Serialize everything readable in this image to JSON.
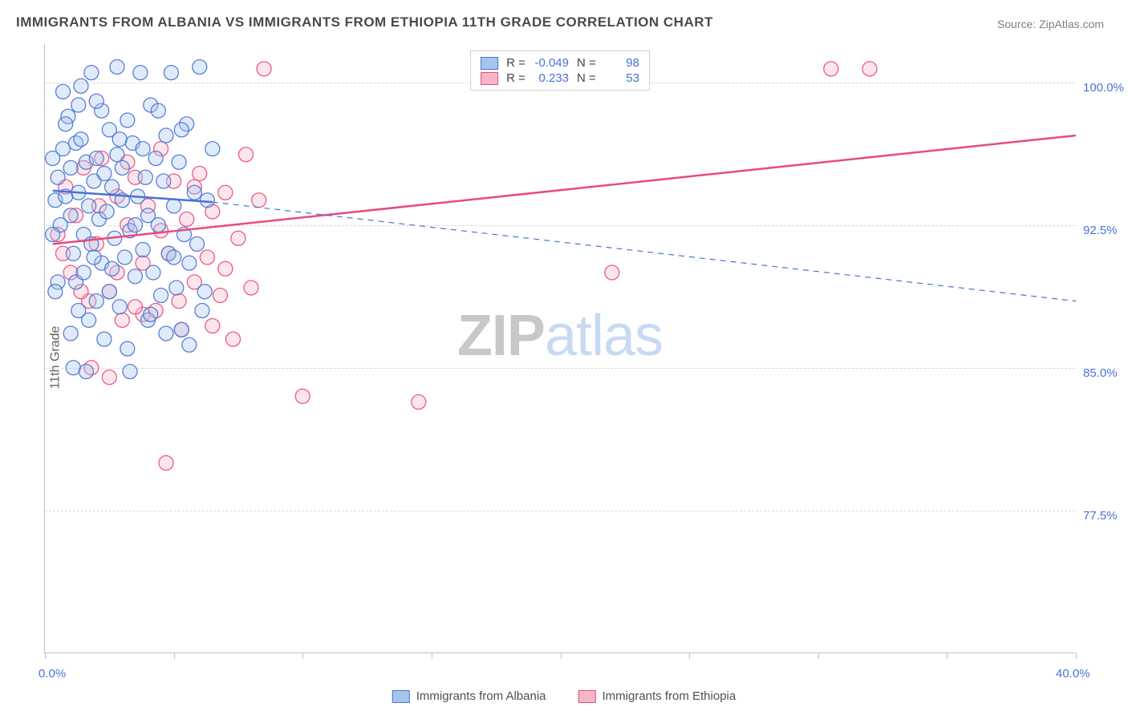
{
  "title": "IMMIGRANTS FROM ALBANIA VS IMMIGRANTS FROM ETHIOPIA 11TH GRADE CORRELATION CHART",
  "source": "Source: ZipAtlas.com",
  "ylabel": "11th Grade",
  "watermark": {
    "part1": "ZIP",
    "part2": "atlas"
  },
  "chart": {
    "type": "scatter",
    "xlim": [
      0,
      40
    ],
    "ylim": [
      70,
      102
    ],
    "xticks": [
      0,
      5,
      10,
      15,
      20,
      25,
      30,
      35,
      40
    ],
    "xticklabels": {
      "0": "0.0%",
      "40": "40.0%"
    },
    "yticks": [
      77.5,
      85.0,
      92.5,
      100.0
    ],
    "yticklabels": [
      "77.5%",
      "85.0%",
      "92.5%",
      "100.0%"
    ],
    "grid_color": "#d8d8d8",
    "axis_color": "#c0c0c0",
    "tick_label_color": "#4a72d4",
    "background_color": "#ffffff",
    "marker_radius": 9,
    "marker_fill_opacity": 0.35,
    "marker_stroke_width": 1.3,
    "line_width_solid": 2.5,
    "line_width_dashed": 1.2
  },
  "series": {
    "albania": {
      "label": "Immigrants from Albania",
      "fill": "#a5c5ed",
      "stroke": "#4a72d4",
      "R": "-0.049",
      "N": "98",
      "trend_solid": {
        "x1": 0.3,
        "y1": 94.3,
        "x2": 6.5,
        "y2": 93.7
      },
      "trend_dashed": {
        "x1": 6.5,
        "y1": 93.7,
        "x2": 40,
        "y2": 88.5
      },
      "points": [
        [
          0.4,
          93.8
        ],
        [
          0.5,
          95.0
        ],
        [
          0.6,
          92.5
        ],
        [
          0.7,
          96.5
        ],
        [
          0.8,
          94.0
        ],
        [
          0.9,
          98.2
        ],
        [
          1.0,
          93.0
        ],
        [
          1.0,
          95.5
        ],
        [
          1.1,
          91.0
        ],
        [
          1.2,
          96.8
        ],
        [
          1.2,
          89.5
        ],
        [
          1.3,
          94.2
        ],
        [
          1.3,
          88.0
        ],
        [
          1.4,
          97.0
        ],
        [
          1.5,
          92.0
        ],
        [
          1.5,
          90.0
        ],
        [
          1.6,
          95.8
        ],
        [
          1.7,
          93.5
        ],
        [
          1.8,
          100.5
        ],
        [
          1.8,
          91.5
        ],
        [
          1.9,
          94.8
        ],
        [
          2.0,
          96.0
        ],
        [
          2.0,
          88.5
        ],
        [
          2.1,
          92.8
        ],
        [
          2.2,
          98.5
        ],
        [
          2.2,
          90.5
        ],
        [
          2.3,
          95.2
        ],
        [
          2.4,
          93.2
        ],
        [
          2.5,
          97.5
        ],
        [
          2.5,
          89.0
        ],
        [
          2.6,
          94.5
        ],
        [
          2.7,
          91.8
        ],
        [
          2.8,
          100.8
        ],
        [
          2.8,
          96.2
        ],
        [
          2.9,
          88.2
        ],
        [
          3.0,
          93.8
        ],
        [
          3.0,
          95.5
        ],
        [
          3.1,
          90.8
        ],
        [
          3.2,
          98.0
        ],
        [
          3.3,
          84.8
        ],
        [
          3.3,
          92.2
        ],
        [
          3.4,
          96.8
        ],
        [
          3.5,
          89.8
        ],
        [
          3.6,
          94.0
        ],
        [
          3.7,
          100.5
        ],
        [
          3.8,
          91.2
        ],
        [
          3.9,
          95.0
        ],
        [
          4.0,
          87.5
        ],
        [
          4.0,
          93.0
        ],
        [
          4.1,
          98.8
        ],
        [
          4.2,
          90.0
        ],
        [
          4.3,
          96.0
        ],
        [
          4.4,
          92.5
        ],
        [
          4.5,
          88.8
        ],
        [
          4.6,
          94.8
        ],
        [
          4.7,
          97.2
        ],
        [
          4.8,
          91.0
        ],
        [
          4.9,
          100.5
        ],
        [
          5.0,
          93.5
        ],
        [
          5.1,
          89.2
        ],
        [
          5.2,
          95.8
        ],
        [
          5.3,
          87.0
        ],
        [
          5.4,
          92.0
        ],
        [
          5.5,
          97.8
        ],
        [
          5.6,
          90.5
        ],
        [
          5.8,
          94.2
        ],
        [
          6.0,
          100.8
        ],
        [
          6.1,
          88.0
        ],
        [
          6.3,
          93.8
        ],
        [
          6.5,
          96.5
        ],
        [
          0.5,
          89.5
        ],
        [
          0.8,
          97.8
        ],
        [
          1.1,
          85.0
        ],
        [
          1.4,
          99.8
        ],
        [
          1.7,
          87.5
        ],
        [
          2.0,
          99.0
        ],
        [
          2.3,
          86.5
        ],
        [
          2.6,
          90.2
        ],
        [
          2.9,
          97.0
        ],
        [
          3.2,
          86.0
        ],
        [
          3.5,
          92.5
        ],
        [
          3.8,
          96.5
        ],
        [
          4.1,
          87.8
        ],
        [
          4.4,
          98.5
        ],
        [
          4.7,
          86.8
        ],
        [
          5.0,
          90.8
        ],
        [
          5.3,
          97.5
        ],
        [
          5.6,
          86.2
        ],
        [
          5.9,
          91.5
        ],
        [
          6.2,
          89.0
        ],
        [
          0.7,
          99.5
        ],
        [
          1.0,
          86.8
        ],
        [
          1.3,
          98.8
        ],
        [
          1.6,
          84.8
        ],
        [
          1.9,
          90.8
        ],
        [
          0.3,
          92.0
        ],
        [
          0.3,
          96.0
        ],
        [
          0.4,
          89.0
        ]
      ]
    },
    "ethiopia": {
      "label": "Immigrants from Ethiopia",
      "fill": "#f5b7c8",
      "stroke": "#e94b7a",
      "R": "0.233",
      "N": "53",
      "trend_solid": {
        "x1": 0.3,
        "y1": 91.5,
        "x2": 40,
        "y2": 97.2
      },
      "points": [
        [
          0.5,
          92.0
        ],
        [
          0.8,
          94.5
        ],
        [
          1.0,
          90.0
        ],
        [
          1.2,
          93.0
        ],
        [
          1.5,
          95.5
        ],
        [
          1.7,
          88.5
        ],
        [
          2.0,
          91.5
        ],
        [
          2.2,
          96.0
        ],
        [
          2.5,
          89.0
        ],
        [
          2.8,
          94.0
        ],
        [
          3.0,
          87.5
        ],
        [
          3.2,
          92.5
        ],
        [
          3.5,
          95.0
        ],
        [
          3.8,
          90.5
        ],
        [
          4.0,
          93.5
        ],
        [
          4.3,
          88.0
        ],
        [
          4.5,
          96.5
        ],
        [
          4.8,
          91.0
        ],
        [
          5.0,
          94.8
        ],
        [
          5.3,
          87.0
        ],
        [
          5.5,
          92.8
        ],
        [
          5.8,
          89.5
        ],
        [
          6.0,
          95.2
        ],
        [
          6.3,
          90.8
        ],
        [
          6.5,
          93.2
        ],
        [
          6.8,
          88.8
        ],
        [
          7.0,
          94.2
        ],
        [
          7.3,
          86.5
        ],
        [
          7.5,
          91.8
        ],
        [
          7.8,
          96.2
        ],
        [
          8.0,
          89.2
        ],
        [
          8.3,
          93.8
        ],
        [
          4.7,
          80.0
        ],
        [
          1.8,
          85.0
        ],
        [
          2.5,
          84.5
        ],
        [
          3.2,
          95.8
        ],
        [
          3.8,
          87.8
        ],
        [
          4.5,
          92.2
        ],
        [
          5.2,
          88.5
        ],
        [
          5.8,
          94.5
        ],
        [
          6.5,
          87.2
        ],
        [
          7.0,
          90.2
        ],
        [
          8.5,
          100.7
        ],
        [
          10.0,
          83.5
        ],
        [
          14.5,
          83.2
        ],
        [
          22.0,
          90.0
        ],
        [
          30.5,
          100.7
        ],
        [
          32.0,
          100.7
        ],
        [
          0.7,
          91.0
        ],
        [
          1.4,
          89.0
        ],
        [
          2.1,
          93.5
        ],
        [
          2.8,
          90.0
        ],
        [
          3.5,
          88.2
        ]
      ]
    }
  },
  "legend_top": {
    "rows": [
      {
        "series": "albania",
        "R_label": "R =",
        "N_label": "N ="
      },
      {
        "series": "ethiopia",
        "R_label": "R =",
        "N_label": "N ="
      }
    ]
  },
  "legend_bottom": [
    {
      "series": "albania"
    },
    {
      "series": "ethiopia"
    }
  ]
}
